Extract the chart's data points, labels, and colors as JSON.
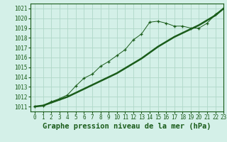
{
  "title": "Graphe pression niveau de la mer (hPa)",
  "background_color": "#d4f0e8",
  "grid_color": "#b0d8c8",
  "line_color": "#1a5c1a",
  "xlim": [
    -0.5,
    23
  ],
  "ylim": [
    1010.5,
    1021.5
  ],
  "yticks": [
    1011,
    1012,
    1013,
    1014,
    1015,
    1016,
    1017,
    1018,
    1019,
    1020,
    1021
  ],
  "xticks": [
    0,
    1,
    2,
    3,
    4,
    5,
    6,
    7,
    8,
    9,
    10,
    11,
    12,
    13,
    14,
    15,
    16,
    17,
    18,
    19,
    20,
    21,
    22,
    23
  ],
  "series1_x": [
    0,
    1,
    2,
    3,
    4,
    5,
    6,
    7,
    8,
    9,
    10,
    11,
    12,
    13,
    14,
    15,
    16,
    17,
    18,
    19,
    20,
    21,
    22,
    23
  ],
  "series1_y": [
    1011.0,
    1011.1,
    1011.4,
    1011.7,
    1012.0,
    1012.4,
    1012.8,
    1013.2,
    1013.6,
    1014.0,
    1014.4,
    1014.9,
    1015.4,
    1015.9,
    1016.5,
    1017.1,
    1017.6,
    1018.1,
    1018.5,
    1018.9,
    1019.3,
    1019.8,
    1020.3,
    1021.0
  ],
  "series2_x": [
    0,
    1,
    2,
    3,
    4,
    5,
    6,
    7,
    8,
    9,
    10,
    11,
    12,
    13,
    14,
    15,
    16,
    17,
    18,
    19,
    20,
    21,
    22,
    23
  ],
  "series2_y": [
    1011.0,
    1011.1,
    1011.5,
    1011.8,
    1012.2,
    1013.1,
    1013.9,
    1014.3,
    1015.1,
    1015.6,
    1016.2,
    1016.8,
    1017.8,
    1018.4,
    1019.6,
    1019.7,
    1019.5,
    1019.2,
    1019.2,
    1019.0,
    1019.0,
    1019.5,
    1020.4,
    1021.0
  ],
  "title_fontsize": 7.5,
  "tick_fontsize": 5.5
}
